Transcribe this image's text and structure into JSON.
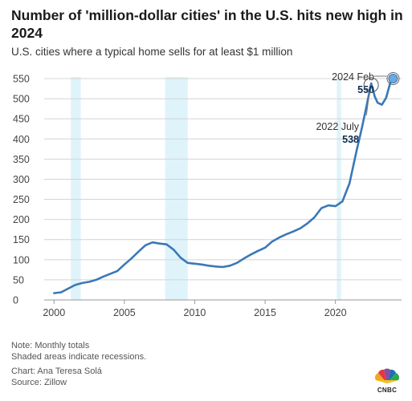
{
  "chart_data": {
    "type": "line",
    "title": "Number of 'million-dollar cities' in the U.S. hits new high in 2024",
    "subtitle": "U.S. cities where a typical home sells for at least $1 million",
    "xlabel": "",
    "ylabel": "",
    "xlim": [
      1999.3,
      2024.7
    ],
    "ylim": [
      0,
      550
    ],
    "x_ticks": [
      2000,
      2005,
      2010,
      2015,
      2020
    ],
    "y_ticks": [
      0,
      50,
      100,
      150,
      200,
      250,
      300,
      350,
      400,
      450,
      500,
      550
    ],
    "grid": "horizontal",
    "line_color": "#3a78b8",
    "recession_color": "#dff3fa",
    "recessions": [
      [
        2001.2,
        2001.9
      ],
      [
        2007.9,
        2009.5
      ],
      [
        2020.1,
        2020.4
      ]
    ],
    "series": [
      {
        "x": [
          2000.0,
          2000.5,
          2001.0,
          2001.5,
          2002.0,
          2002.5,
          2003.0,
          2003.5,
          2004.0,
          2004.5,
          2005.0,
          2005.5,
          2006.0,
          2006.5,
          2007.0,
          2007.5,
          2008.0,
          2008.5,
          2009.0,
          2009.5,
          2010.0,
          2010.5,
          2011.0,
          2011.5,
          2012.0,
          2012.5,
          2013.0,
          2013.5,
          2014.0,
          2014.5,
          2015.0,
          2015.5,
          2016.0,
          2016.5,
          2017.0,
          2017.5,
          2018.0,
          2018.5,
          2019.0,
          2019.5,
          2020.0,
          2020.5,
          2021.0,
          2021.5,
          2021.9,
          2022.2,
          2022.54,
          2022.8,
          2023.0,
          2023.3,
          2023.6,
          2023.9,
          2024.1
        ],
        "values": [
          17,
          19,
          28,
          37,
          42,
          45,
          50,
          58,
          65,
          72,
          88,
          103,
          120,
          136,
          143,
          140,
          138,
          125,
          105,
          92,
          90,
          88,
          85,
          83,
          82,
          85,
          92,
          103,
          113,
          122,
          130,
          145,
          155,
          163,
          170,
          178,
          190,
          205,
          228,
          235,
          233,
          245,
          290,
          370,
          430,
          480,
          538,
          505,
          490,
          485,
          502,
          540,
          550
        ]
      }
    ],
    "annotations": [
      {
        "label": "2024 Feb",
        "value": "550",
        "x": 2024.1,
        "y": 550
      },
      {
        "label": "2022 July",
        "value": "538",
        "x": 2022.54,
        "y": 538
      }
    ]
  },
  "footer": {
    "note1": "Note: Monthly totals",
    "note2": "Shaded areas indicate recessions.",
    "credit": "Chart: Ana Teresa Solá",
    "source": "Source: Zillow"
  },
  "logo": {
    "text": "CNBC"
  }
}
